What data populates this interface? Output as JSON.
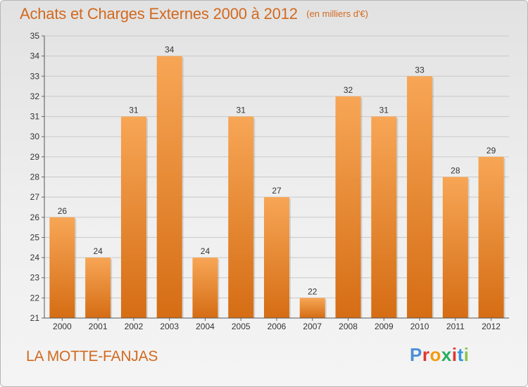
{
  "header": {
    "title": "Achats et Charges Externes 2000 à 2012",
    "unit": "(en milliers d'€)"
  },
  "footer": {
    "place": "LA MOTTE-FANJAS",
    "logo": "Proxiti"
  },
  "colors": {
    "title": "#d2691e",
    "bar_light": "#f7a656",
    "bar_dark": "#d56d14",
    "logo_letters": [
      "#4a90d9",
      "#e3342f",
      "#f39c12",
      "#27ae60",
      "#e3342f",
      "#3498db",
      "#8bc34a"
    ]
  },
  "chart_data": {
    "type": "bar",
    "categories": [
      "2000",
      "2001",
      "2002",
      "2003",
      "2004",
      "2005",
      "2006",
      "2007",
      "2008",
      "2009",
      "2010",
      "2011",
      "2012"
    ],
    "values": [
      26,
      24,
      31,
      34,
      24,
      31,
      27,
      22,
      32,
      31,
      33,
      28,
      29
    ],
    "ylim": [
      21,
      35
    ],
    "yticks": [
      21,
      22,
      23,
      24,
      25,
      26,
      27,
      28,
      29,
      30,
      31,
      32,
      33,
      34,
      35
    ],
    "grid": true,
    "data_labels": true
  }
}
